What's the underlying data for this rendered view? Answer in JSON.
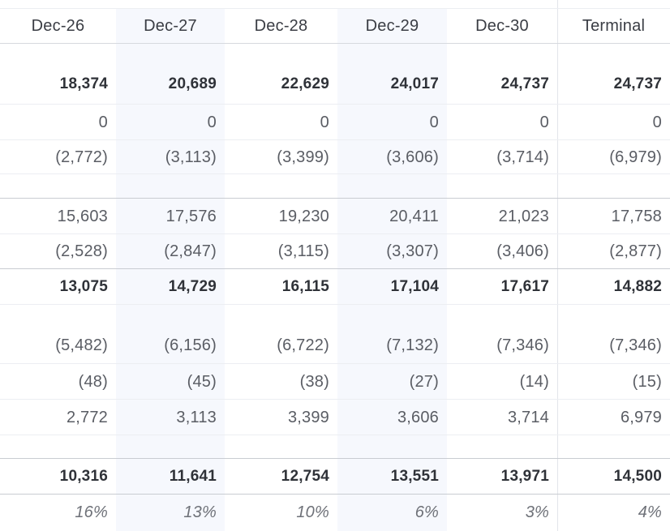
{
  "columns": [
    "Dec-26",
    "Dec-27",
    "Dec-28",
    "Dec-29",
    "Dec-30",
    "Terminal"
  ],
  "rows": [
    {
      "style": "blank",
      "values": [
        "",
        "",
        "",
        "",
        "",
        ""
      ]
    },
    {
      "style": "bold",
      "values": [
        "18,374",
        "20,689",
        "22,629",
        "24,017",
        "24,737",
        "24,737"
      ]
    },
    {
      "style": "norm",
      "values": [
        "0",
        "0",
        "0",
        "0",
        "0",
        "0"
      ]
    },
    {
      "style": "norm",
      "values": [
        "(2,772)",
        "(3,113)",
        "(3,399)",
        "(3,606)",
        "(3,714)",
        "(6,979)"
      ]
    },
    {
      "style": "blank",
      "values": [
        "",
        "",
        "",
        "",
        "",
        ""
      ]
    },
    {
      "style": "norm",
      "values": [
        "15,603",
        "17,576",
        "19,230",
        "20,411",
        "21,023",
        "17,758"
      ]
    },
    {
      "style": "norm",
      "values": [
        "(2,528)",
        "(2,847)",
        "(3,115)",
        "(3,307)",
        "(3,406)",
        "(2,877)"
      ]
    },
    {
      "style": "bold",
      "values": [
        "13,075",
        "14,729",
        "16,115",
        "17,104",
        "17,617",
        "14,882"
      ]
    },
    {
      "style": "blank",
      "values": [
        "",
        "",
        "",
        "",
        "",
        ""
      ]
    },
    {
      "style": "norm",
      "values": [
        "(5,482)",
        "(6,156)",
        "(6,722)",
        "(7,132)",
        "(7,346)",
        "(7,346)"
      ]
    },
    {
      "style": "norm",
      "values": [
        "(48)",
        "(45)",
        "(38)",
        "(27)",
        "(14)",
        "(15)"
      ]
    },
    {
      "style": "norm",
      "values": [
        "2,772",
        "3,113",
        "3,399",
        "3,606",
        "3,714",
        "6,979"
      ]
    },
    {
      "style": "blank",
      "values": [
        "",
        "",
        "",
        "",
        "",
        ""
      ]
    },
    {
      "style": "bold",
      "values": [
        "10,316",
        "11,641",
        "12,754",
        "13,551",
        "13,971",
        "14,500"
      ]
    },
    {
      "style": "ital",
      "values": [
        "16%",
        "13%",
        "10%",
        "6%",
        "3%",
        "4%"
      ]
    }
  ]
}
